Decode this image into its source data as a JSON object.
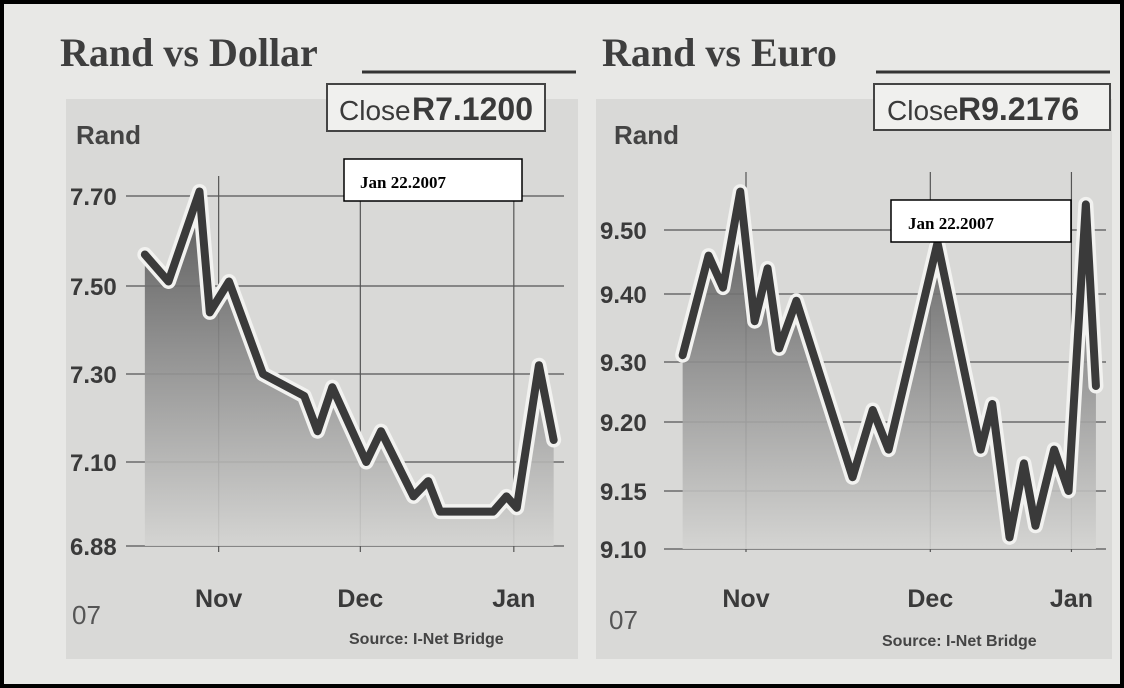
{
  "chart_data": [
    {
      "type": "area",
      "title": "Rand vs Dollar",
      "ylabel": "Rand",
      "close_label": "Close",
      "close_value": "R7.1200",
      "date_note": "Jan 22.2007",
      "year_label": "07",
      "source": "Source: I-Net Bridge",
      "ylim": [
        6.88,
        7.7
      ],
      "yticks": [
        "7.70",
        "7.50",
        "7.30",
        "7.10",
        "6.88"
      ],
      "months": [
        "Nov",
        "Dec",
        "Jan"
      ],
      "points": [
        [
          0,
          7.57
        ],
        [
          0.8,
          7.51
        ],
        [
          1.85,
          7.71
        ],
        [
          2.2,
          7.44
        ],
        [
          2.85,
          7.51
        ],
        [
          4.0,
          7.3
        ],
        [
          5.4,
          7.25
        ],
        [
          5.85,
          7.17
        ],
        [
          6.35,
          7.27
        ],
        [
          7.5,
          7.1
        ],
        [
          8.0,
          7.17
        ],
        [
          9.1,
          7.01
        ],
        [
          9.6,
          7.05
        ],
        [
          10.0,
          6.97
        ],
        [
          10.4,
          6.97
        ],
        [
          11.8,
          6.97
        ],
        [
          12.25,
          7.01
        ],
        [
          12.6,
          6.98
        ],
        [
          13.35,
          7.32
        ],
        [
          13.85,
          7.15
        ]
      ],
      "month_x": [
        2.5,
        7.3,
        12.5
      ],
      "x_range": [
        -0.3,
        14.2
      ]
    },
    {
      "type": "area",
      "title": "Rand vs Euro",
      "ylabel": "Rand",
      "close_label": "Close",
      "close_value": "R9.2176",
      "date_note": "Jan 22.2007",
      "year_label": "07",
      "source": "Source: I-Net Bridge",
      "ylim": [
        9.1,
        9.5
      ],
      "yticks": [
        "9.50",
        "9.40",
        "9.30",
        "9.20",
        "9.15",
        "9.10"
      ],
      "months": [
        "Nov",
        "Dec",
        "Jan"
      ],
      "points": [
        [
          0,
          9.31
        ],
        [
          0.9,
          9.46
        ],
        [
          1.4,
          9.41
        ],
        [
          2.0,
          9.56
        ],
        [
          2.5,
          9.36
        ],
        [
          2.95,
          9.44
        ],
        [
          3.35,
          9.32
        ],
        [
          3.95,
          9.39
        ],
        [
          5.9,
          9.16
        ],
        [
          6.6,
          9.22
        ],
        [
          7.15,
          9.18
        ],
        [
          8.85,
          9.48
        ],
        [
          10.35,
          9.18
        ],
        [
          10.75,
          9.23
        ],
        [
          11.35,
          9.11
        ],
        [
          11.85,
          9.17
        ],
        [
          12.25,
          9.12
        ],
        [
          12.9,
          9.18
        ],
        [
          13.4,
          9.15
        ],
        [
          14.0,
          9.54
        ],
        [
          14.35,
          9.26
        ]
      ],
      "month_x": [
        2.2,
        8.6,
        13.5
      ],
      "x_range": [
        -0.3,
        14.7
      ]
    }
  ]
}
